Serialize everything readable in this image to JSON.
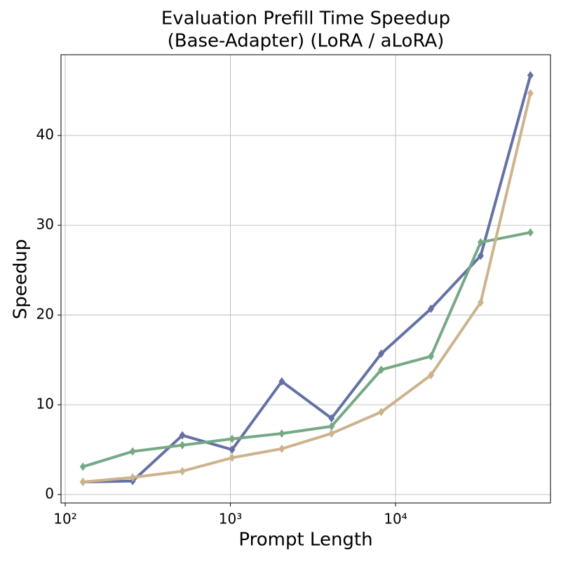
{
  "chart_data": {
    "type": "line",
    "title": [
      "Evaluation Prefill Time Speedup",
      "(Base-Adapter) (LoRA / aLoRA)"
    ],
    "x_label": "Prompt Length",
    "y_label": "Speedup",
    "x": [
      128,
      256,
      512,
      1024,
      2048,
      4096,
      8192,
      16384,
      32768,
      65536
    ],
    "series": [
      {
        "color": "#6471a5",
        "values": [
          1.4,
          1.5,
          6.6,
          5.0,
          12.6,
          8.5,
          15.7,
          20.7,
          26.6,
          46.7
        ]
      },
      {
        "color": "#75a985",
        "values": [
          3.1,
          4.8,
          5.5,
          6.2,
          6.8,
          7.6,
          13.9,
          15.4,
          28.1,
          29.2
        ]
      },
      {
        "color": "#cdb38d",
        "values": [
          1.4,
          1.9,
          2.6,
          4.1,
          5.1,
          6.8,
          9.2,
          13.3,
          21.4,
          44.7
        ]
      }
    ],
    "xscale": "log",
    "xlim": [
      94.3,
      86700
    ],
    "xticks": [
      {
        "value": 100,
        "label": "10²"
      },
      {
        "value": 1000,
        "label": "10³"
      },
      {
        "value": 10000,
        "label": "10⁴"
      }
    ],
    "ylim": [
      -0.94,
      49.0
    ],
    "yticks": [
      0,
      10,
      20,
      30,
      40
    ],
    "grid": true
  }
}
